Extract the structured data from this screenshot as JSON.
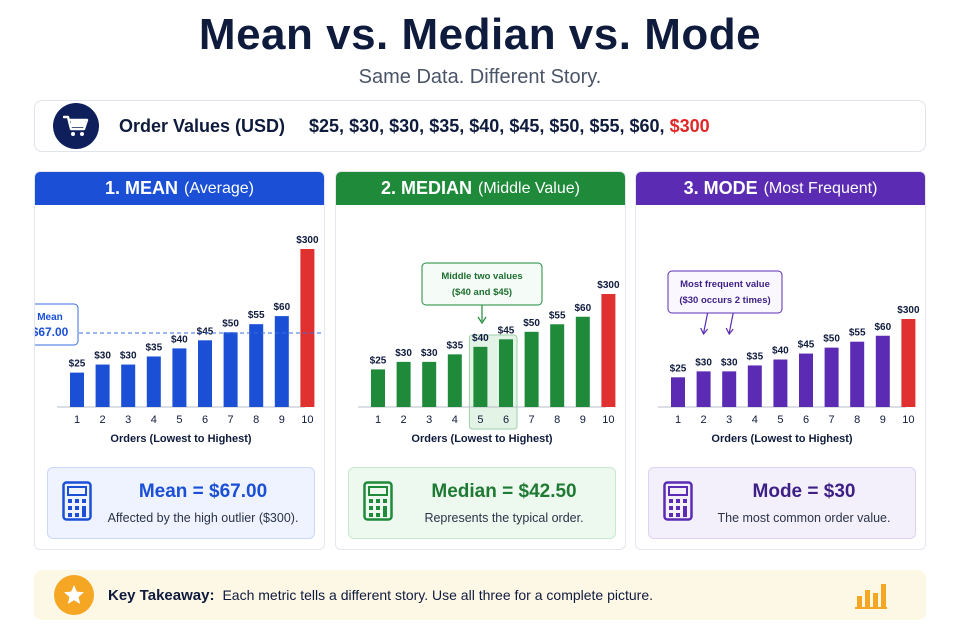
{
  "title": "Mean vs. Median vs. Mode",
  "subtitle": "Same Data. Different Story.",
  "orders": {
    "label": "Order Values (USD)",
    "values": [
      "$25,",
      "$30,",
      "$30,",
      "$35,",
      "$40,",
      "$45,",
      "$50,",
      "$55,",
      "$60,",
      "$300"
    ],
    "icon": "shopping-cart-icon"
  },
  "panels": [
    {
      "title": "1. MEAN",
      "subtitle": "(Average)",
      "color": "#1a4fd6",
      "result_bg": "#eef3ff",
      "result_border": "#c9d8fb",
      "result_big": "Mean = $67.00",
      "result_small": "Affected by the high outlier ($300).",
      "icon": "calculator-icon"
    },
    {
      "title": "2. MEDIAN",
      "subtitle": "(Middle Value)",
      "color": "#1f8a3a",
      "result_bg": "#edf8ef",
      "result_border": "#c8e8cf",
      "result_big": "Median = $42.50",
      "result_small": "Represents the typical order.",
      "icon": "calculator-icon"
    },
    {
      "title": "3. MODE",
      "subtitle": "(Most Frequent)",
      "color": "#5b2bb3",
      "result_bg": "#f3effb",
      "result_border": "#ddd2f1",
      "result_big": "Mode = $30",
      "result_small": "The most common order value.",
      "icon": "calculator-icon"
    }
  ],
  "chart_data": [
    {
      "type": "bar",
      "categories": [
        "1",
        "2",
        "3",
        "4",
        "5",
        "6",
        "7",
        "8",
        "9",
        "10"
      ],
      "values": [
        25,
        30,
        30,
        35,
        40,
        45,
        50,
        55,
        60,
        300
      ],
      "data_labels": [
        "$25",
        "$30",
        "$30",
        "$35",
        "$40",
        "$45",
        "$50",
        "$55",
        "$60",
        "$300"
      ],
      "xlabel": "Orders (Lowest to Highest)",
      "bar_color": "#1a4fd6",
      "outlier_color": "#e03030",
      "reference_line": {
        "value": 67,
        "label_lines": [
          "Mean",
          "$67.00"
        ]
      }
    },
    {
      "type": "bar",
      "categories": [
        "1",
        "2",
        "3",
        "4",
        "5",
        "6",
        "7",
        "8",
        "9",
        "10"
      ],
      "values": [
        25,
        30,
        30,
        35,
        40,
        45,
        50,
        55,
        60,
        300
      ],
      "data_labels": [
        "$25",
        "$30",
        "$30",
        "$35",
        "$40",
        "$45",
        "$50",
        "$55",
        "$60",
        "$300"
      ],
      "xlabel": "Orders (Lowest to Highest)",
      "bar_color": "#1f8a3a",
      "outlier_color": "#e03030",
      "highlight": [
        5,
        6
      ],
      "callout": {
        "lines": [
          "Middle two values",
          "($40 and $45)"
        ]
      }
    },
    {
      "type": "bar",
      "categories": [
        "1",
        "2",
        "3",
        "4",
        "5",
        "6",
        "7",
        "8",
        "9",
        "10"
      ],
      "values": [
        25,
        30,
        30,
        35,
        40,
        45,
        50,
        55,
        60,
        300
      ],
      "data_labels": [
        "$25",
        "$30",
        "$30",
        "$35",
        "$40",
        "$45",
        "$50",
        "$55",
        "$60",
        "$300"
      ],
      "xlabel": "Orders (Lowest to Highest)",
      "bar_color": "#5b2bb3",
      "outlier_color": "#e03030",
      "callout": {
        "lines": [
          "Most frequent value",
          "($30 occurs 2 times)"
        ],
        "targets": [
          2,
          3
        ]
      }
    }
  ],
  "takeaway": {
    "label": "Key Takeaway:",
    "text": "Each metric tells a different story. Use all three for a complete picture.",
    "icon": "star-icon",
    "chart_icon": "bar-chart-icon"
  }
}
